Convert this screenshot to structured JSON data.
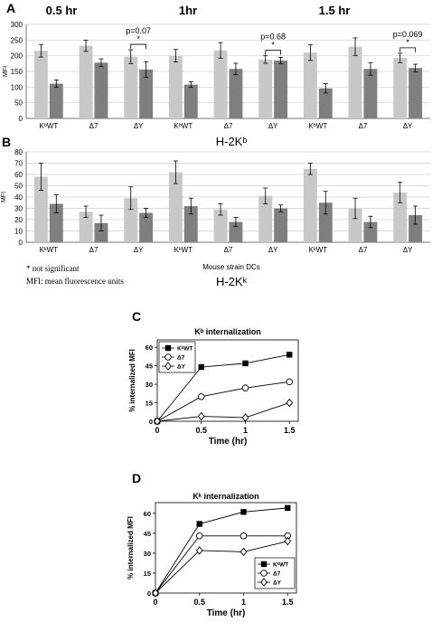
{
  "chart_data": [
    {
      "panel": "A",
      "type": "bar",
      "time_labels": [
        "0.5 hr",
        "1hr",
        "1.5 hr"
      ],
      "categories": [
        "KᵇWT",
        "Δ7",
        "ΔY",
        "KᵇWT",
        "Δ7",
        "ΔY",
        "KᵇWT",
        "Δ7",
        "ΔY"
      ],
      "ylabel": "MFI",
      "xlabel": "H-2Kᵇ",
      "ylim": [
        0,
        300
      ],
      "yticks": [
        0,
        50,
        100,
        150,
        200,
        250,
        300
      ],
      "colors": {
        "light": "#c8c8c8",
        "dark": "#7f7f7f"
      },
      "series": [
        {
          "values": [
            216,
            232,
            197,
            200,
            217,
            188,
            210,
            229,
            193
          ],
          "errors": [
            20,
            18,
            22,
            20,
            25,
            12,
            25,
            28,
            15
          ]
        },
        {
          "values": [
            111,
            178,
            156,
            108,
            158,
            185,
            96,
            158,
            161
          ],
          "errors": [
            12,
            12,
            25,
            9,
            18,
            10,
            15,
            20,
            12
          ]
        }
      ],
      "annotations": [
        {
          "after_group": 2,
          "p": "p=0.07",
          "mark": "*"
        },
        {
          "after_group": 5,
          "p": "p=0.68",
          "mark": "*"
        },
        {
          "after_group": 8,
          "p": "p=0.069",
          "mark": "*"
        }
      ]
    },
    {
      "panel": "B",
      "type": "bar",
      "categories": [
        "KᵏWT",
        "Δ7",
        "ΔY",
        "KᵏWT",
        "Δ7",
        "ΔY",
        "KᵏWT",
        "Δ7",
        "ΔY"
      ],
      "ylabel": "MFI",
      "xlabel": "Mouse strain DCs",
      "xlabel2": "H-2Kᵏ",
      "ylim": [
        0,
        80
      ],
      "yticks": [
        0,
        10,
        20,
        30,
        40,
        50,
        60,
        70,
        80
      ],
      "colors": {
        "light": "#c8c8c8",
        "dark": "#7f7f7f"
      },
      "series": [
        {
          "values": [
            58,
            27,
            39,
            62,
            29,
            41,
            65,
            30,
            44
          ],
          "errors": [
            12,
            5,
            10,
            10,
            5,
            7,
            5,
            9,
            9
          ]
        },
        {
          "values": [
            34,
            17,
            26,
            32,
            18,
            30,
            35,
            18,
            24
          ],
          "errors": [
            8,
            7,
            4,
            7,
            4,
            3,
            10,
            5,
            8
          ]
        }
      ],
      "footnotes": [
        "* not significant",
        "MFI: mean fluorescence units"
      ]
    },
    {
      "panel": "C",
      "type": "line",
      "title": "Kᵇ internalization",
      "xlabel": "Time (hr)",
      "ylabel": "% internalized MFI",
      "x": [
        0,
        0.5,
        1,
        1.5
      ],
      "xticks": [
        "0",
        "0.5",
        "1",
        "1.5"
      ],
      "yticks": [
        0,
        15,
        30,
        45,
        60
      ],
      "ylim": [
        0,
        66
      ],
      "xlim": [
        0,
        1.6
      ],
      "series": [
        {
          "name": "KᵇWT",
          "marker": "square-filled",
          "values": [
            0,
            44,
            47,
            54
          ]
        },
        {
          "name": "Δ7",
          "marker": "circle-open",
          "values": [
            0,
            20,
            27,
            32
          ]
        },
        {
          "name": "ΔY",
          "marker": "diamond-open",
          "values": [
            0,
            4,
            3,
            15
          ]
        }
      ],
      "legend_placement": "top-left"
    },
    {
      "panel": "D",
      "type": "line",
      "title": "Kᵏ internalization",
      "xlabel": "Time (hr)",
      "ylabel": "% internalized MFI",
      "x": [
        0,
        0.5,
        1,
        1.5
      ],
      "xticks": [
        "0",
        "0.5",
        "1",
        "1.5"
      ],
      "yticks": [
        0,
        15,
        30,
        45,
        60
      ],
      "ylim": [
        0,
        68
      ],
      "xlim": [
        0,
        1.6
      ],
      "series": [
        {
          "name": "KᵏWT",
          "marker": "square-filled",
          "values": [
            0,
            52,
            61,
            64
          ]
        },
        {
          "name": "Δ7",
          "marker": "circle-open",
          "values": [
            0,
            43,
            43,
            43
          ]
        },
        {
          "name": "ΔY",
          "marker": "diamond-open",
          "values": [
            0,
            32,
            31,
            39
          ]
        }
      ],
      "legend_placement": "bottom-right"
    }
  ]
}
